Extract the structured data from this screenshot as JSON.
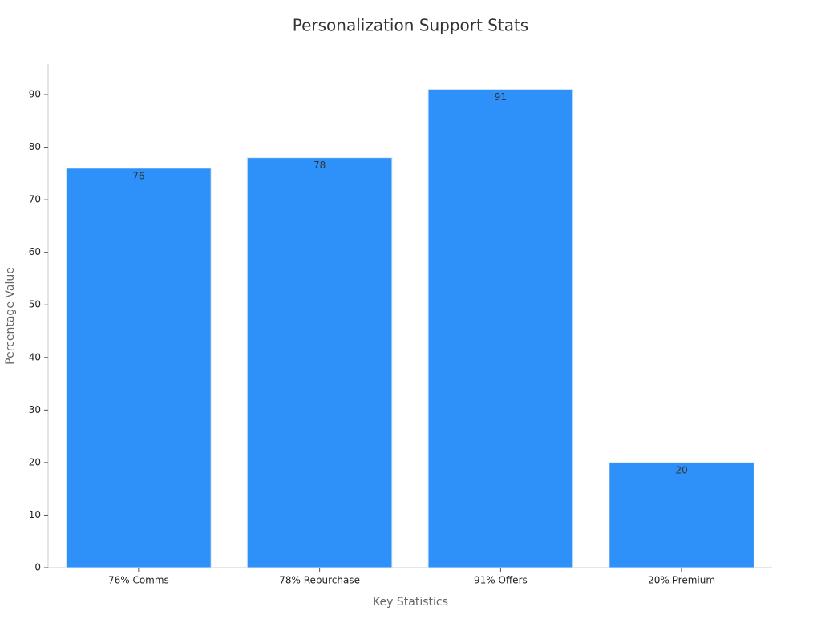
{
  "chart_data": {
    "type": "bar",
    "title": "Personalization Support Stats",
    "x_label": "Key Statistics",
    "y_label": "Percentage Value",
    "categories": [
      "76% Comms",
      "78% Repurchase",
      "91% Offers",
      "20% Premium"
    ],
    "values": [
      76,
      78,
      91,
      20
    ],
    "color": "#2e91f9",
    "ylim": [
      0,
      95.8
    ],
    "yticks": [
      0,
      10,
      20,
      30,
      40,
      50,
      60,
      70,
      80,
      90
    ],
    "grid": false
  }
}
